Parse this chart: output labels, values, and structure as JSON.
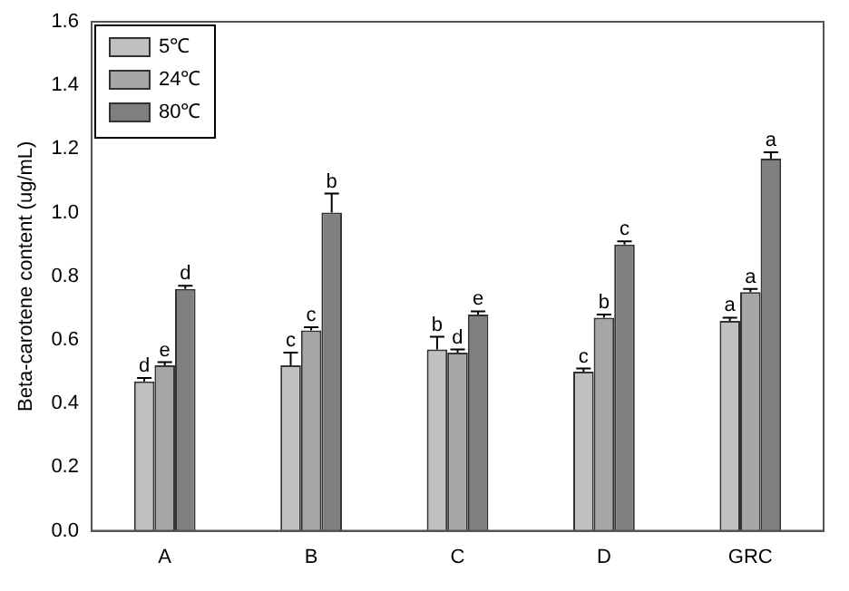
{
  "chart_data": {
    "type": "bar",
    "ylabel": "Beta-carotene content (ug/mL)",
    "categories": [
      "A",
      "B",
      "C",
      "D",
      "GRC"
    ],
    "series": [
      {
        "name": "5℃",
        "color": "#c0c0c0",
        "values": [
          0.47,
          0.52,
          0.57,
          0.5,
          0.66
        ],
        "errors": [
          0.01,
          0.04,
          0.04,
          0.01,
          0.01
        ],
        "value_labels": [
          "d",
          "c",
          "b",
          "c",
          "a"
        ]
      },
      {
        "name": "24℃",
        "color": "#a6a6a6",
        "values": [
          0.52,
          0.63,
          0.56,
          0.67,
          0.75
        ],
        "errors": [
          0.01,
          0.01,
          0.01,
          0.01,
          0.01
        ],
        "value_labels": [
          "e",
          "c",
          "d",
          "b",
          "a"
        ]
      },
      {
        "name": "80℃",
        "color": "#7f7f7f",
        "values": [
          0.76,
          1.0,
          0.68,
          0.9,
          1.17
        ],
        "errors": [
          0.01,
          0.06,
          0.01,
          0.01,
          0.02
        ],
        "value_labels": [
          "d",
          "b",
          "e",
          "c",
          "a"
        ]
      }
    ],
    "ylim": [
      0,
      1.6
    ],
    "yticks": [
      {
        "value": 0,
        "label": "0.0"
      },
      {
        "value": 0.2,
        "label": "0.2"
      },
      {
        "value": 0.4,
        "label": "0.4"
      },
      {
        "value": 0.6,
        "label": "0.6"
      },
      {
        "value": 0.8,
        "label": "0.8"
      },
      {
        "value": 1.0,
        "label": "1.0"
      },
      {
        "value": 1.2,
        "label": "1.2"
      },
      {
        "value": 1.4,
        "label": "1.4"
      },
      {
        "value": 1.6,
        "label": "1.6"
      }
    ],
    "grid": false,
    "legend": "top left"
  }
}
